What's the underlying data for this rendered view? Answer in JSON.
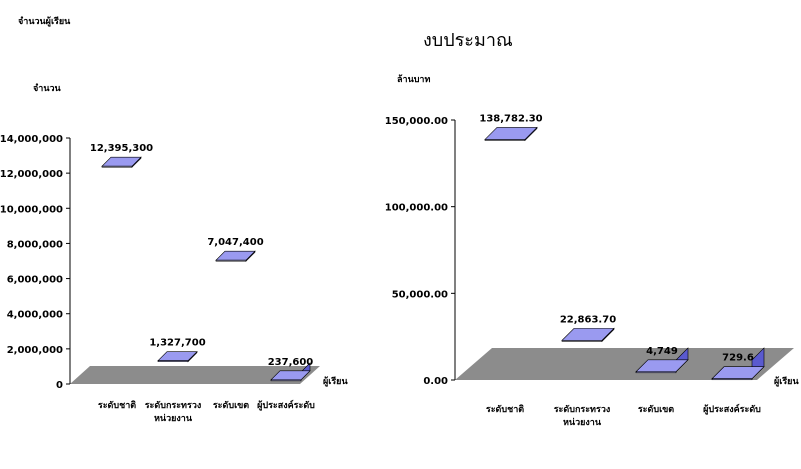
{
  "chart_data": [
    {
      "type": "bar",
      "title": "จำนวนผู้เรียน",
      "ylabel": "จำนวน",
      "xlabel": "ผู้เรียน",
      "categories": [
        "ระดับชาติ",
        "ระดับกระทรวง/หน่วยงาน",
        "ระดับเขต",
        "ผู้ประสงค์ระดับ"
      ],
      "values": [
        12395300,
        1327700,
        7047400,
        237600
      ],
      "value_labels": [
        "12,395,300",
        "1,327,700",
        "7,047,400",
        "237,600"
      ],
      "ylim": [
        0,
        14000000
      ],
      "yticks": [
        "0",
        "2,000,000",
        "4,000,000",
        "6,000,000",
        "8,000,000",
        "10,000,000",
        "12,000,000",
        "14,000,000"
      ],
      "style": "3d-column"
    },
    {
      "type": "bar",
      "title": "งบประมาณ",
      "ylabel": "ล้านบาท",
      "xlabel": "ผู้เรียน",
      "categories": [
        "ระดับชาติ",
        "ระดับกระทรวง/หน่วยงาน",
        "ระดับเขต",
        "ผู้ประสงค์ระดับ"
      ],
      "values": [
        138782.3,
        22863.7,
        4749,
        729.6
      ],
      "value_labels": [
        "138,782.30",
        "22,863.70",
        "4,749",
        "729.6"
      ],
      "ylim": [
        0,
        150000
      ],
      "yticks": [
        "0.00",
        "50,000.00",
        "100,000.00",
        "150,000.00"
      ],
      "style": "3d-column"
    }
  ],
  "colors": {
    "bar_front_top": "#7a7ae0",
    "bar_front_bottom": "#ffffff",
    "bar_side": "#5a5acf",
    "bar_top": "#9a9af0",
    "floor": "#8c8c8c",
    "axis": "#000000"
  }
}
